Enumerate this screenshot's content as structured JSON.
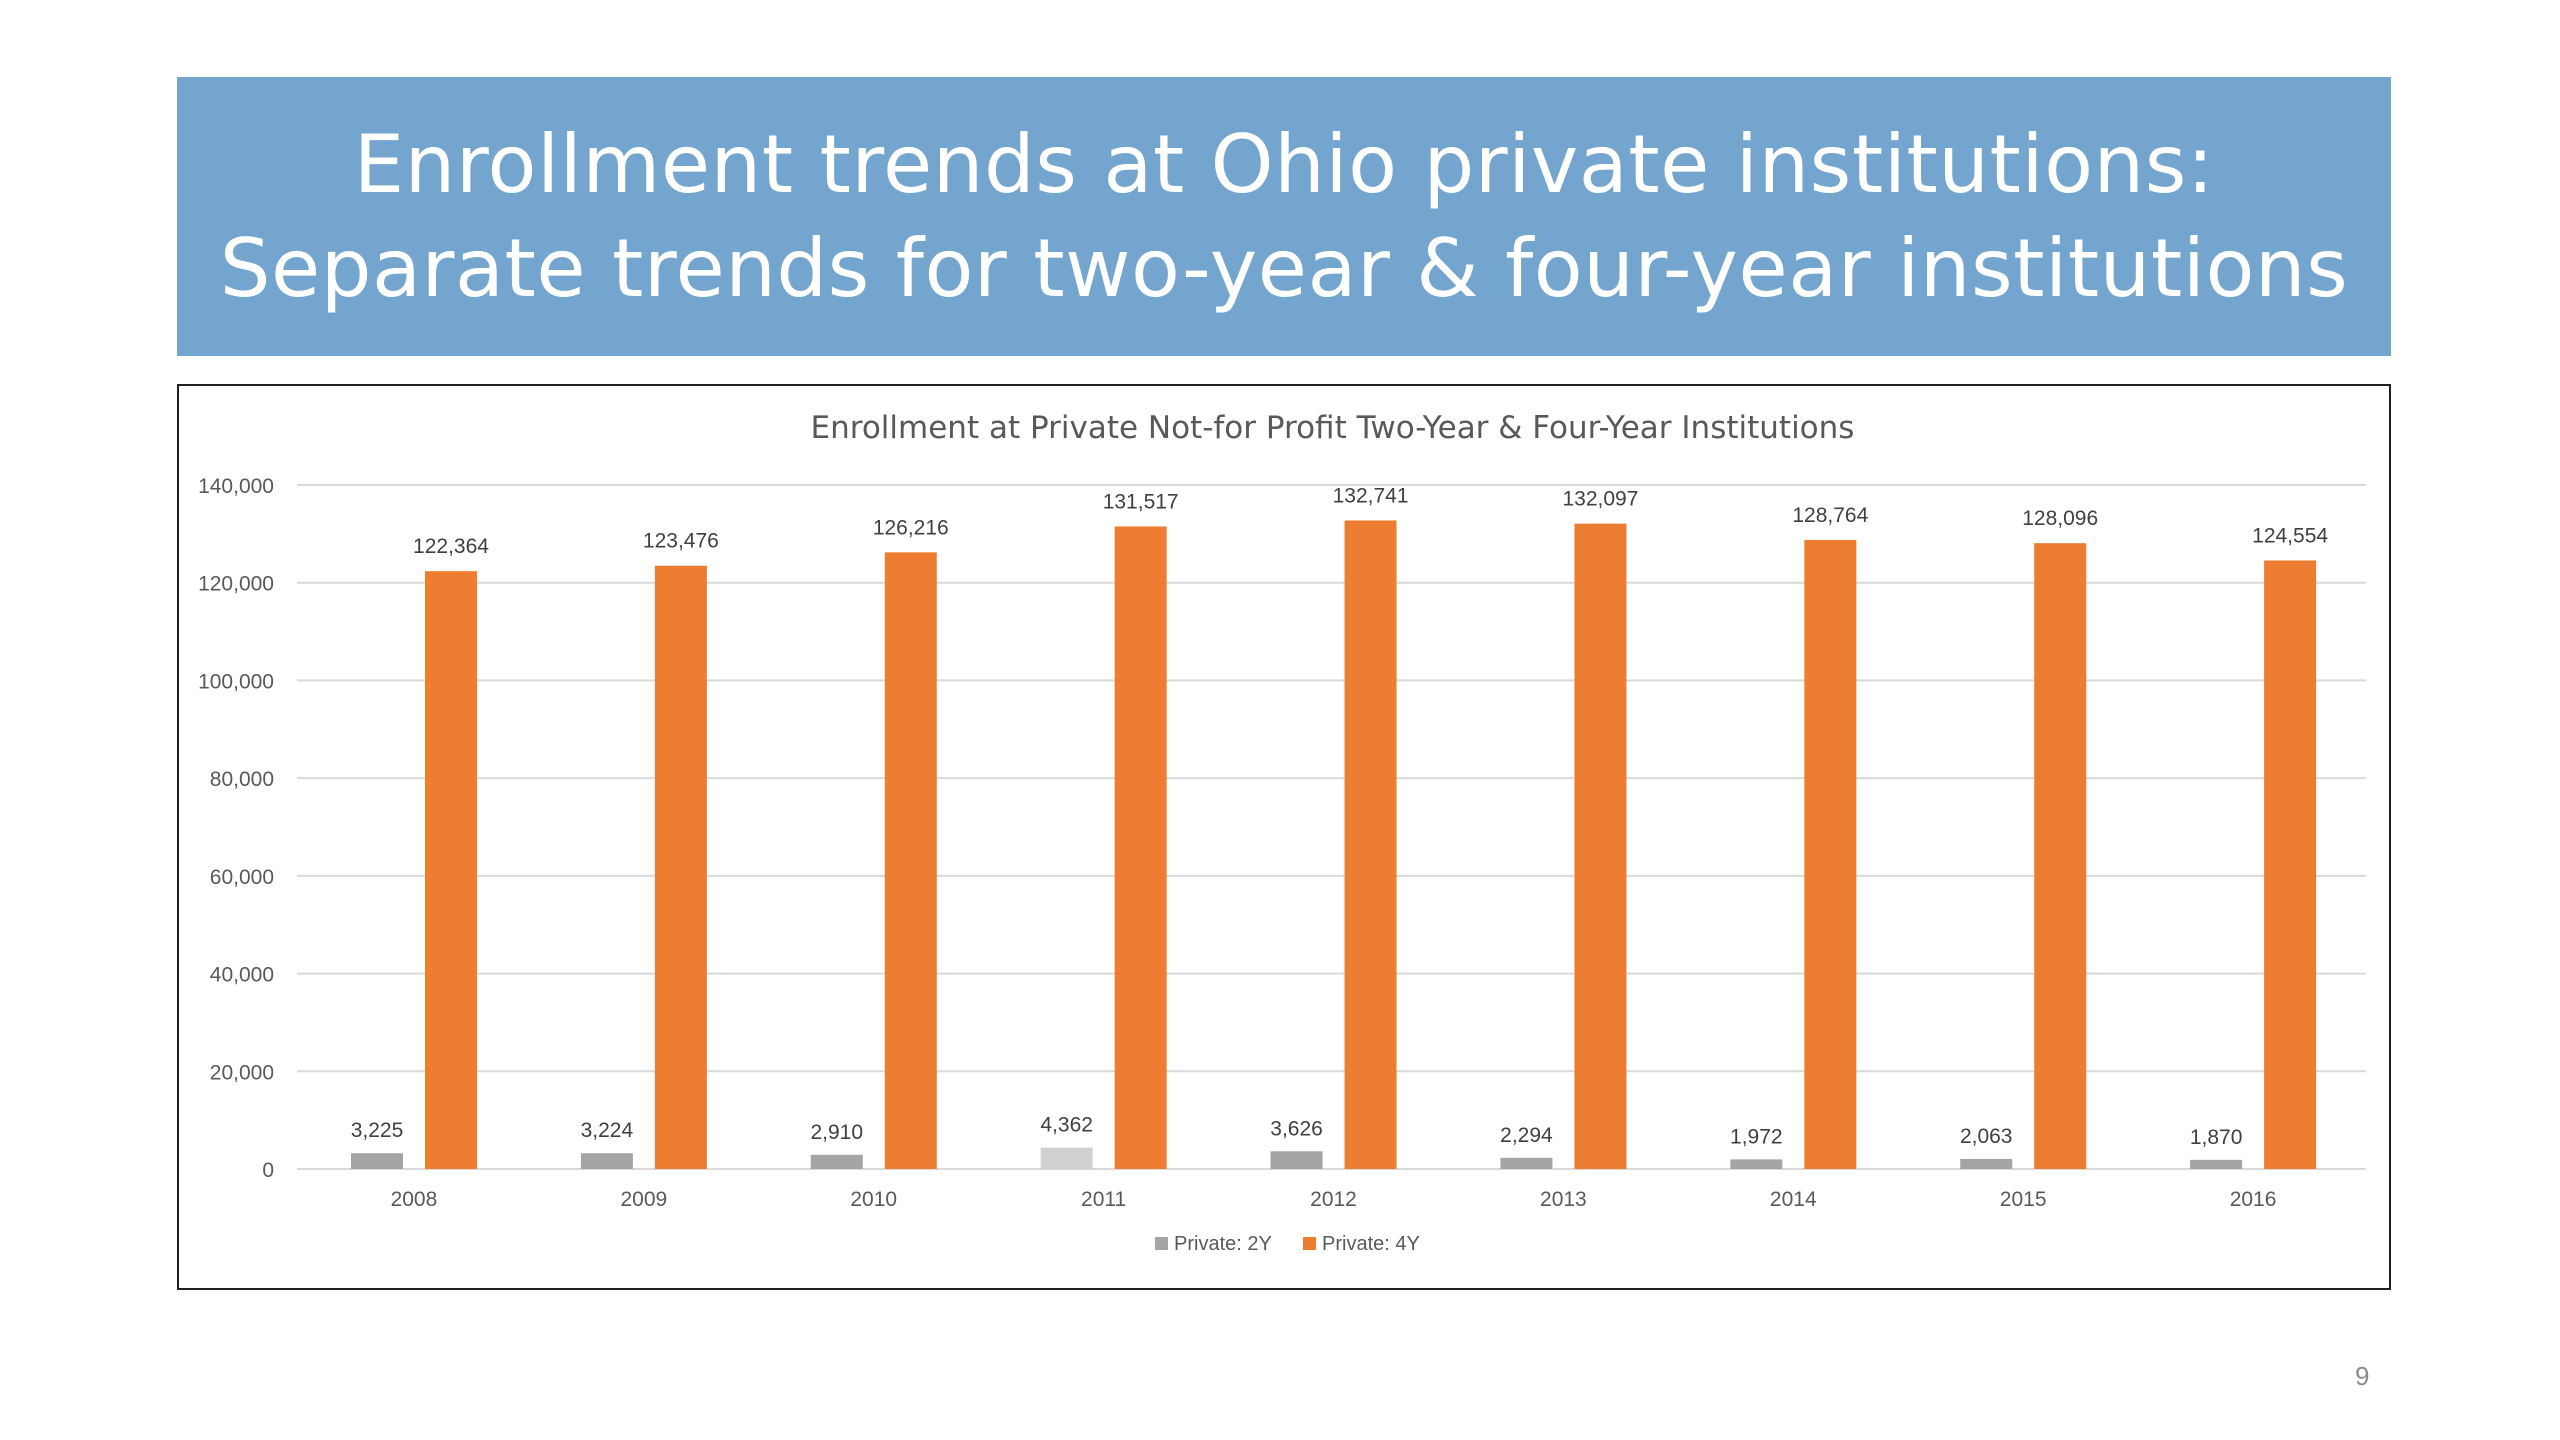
{
  "slide": {
    "title_line1": "Enrollment trends at Ohio private institutions:",
    "title_line2": "Separate trends for two-year & four-year institutions",
    "page_number": "9"
  },
  "colors": {
    "banner": "#74a5ce",
    "series_2y": "#a5a5a5",
    "series_2y_2011": "#d0d0d0",
    "series_4y": "#ed7d31",
    "gridline": "#d9d9d9",
    "text": "#595959"
  },
  "chart_data": {
    "type": "bar",
    "title": "Enrollment at Private Not-for Profit Two-Year & Four-Year Institutions",
    "categories": [
      "2008",
      "2009",
      "2010",
      "2011",
      "2012",
      "2013",
      "2014",
      "2015",
      "2016"
    ],
    "series": [
      {
        "name": "Private: 2Y",
        "values": [
          3225,
          3224,
          2910,
          4362,
          3626,
          2294,
          1972,
          2063,
          1870
        ],
        "labels": [
          "3,225",
          "3,224",
          "2,910",
          "4,362",
          "3,626",
          "2,294",
          "1,972",
          "2,063",
          "1,870"
        ]
      },
      {
        "name": "Private: 4Y",
        "values": [
          122364,
          123476,
          126216,
          131517,
          132741,
          132097,
          128764,
          128096,
          124554
        ],
        "labels": [
          "122,364",
          "123,476",
          "126,216",
          "131,517",
          "132,741",
          "132,097",
          "128,764",
          "128,096",
          "124,554"
        ]
      }
    ],
    "yticks": [
      "0",
      "20,000",
      "40,000",
      "60,000",
      "80,000",
      "100,000",
      "120,000",
      "140,000"
    ],
    "ylim": [
      0,
      140000
    ],
    "grid": true,
    "legend_position": "bottom"
  }
}
